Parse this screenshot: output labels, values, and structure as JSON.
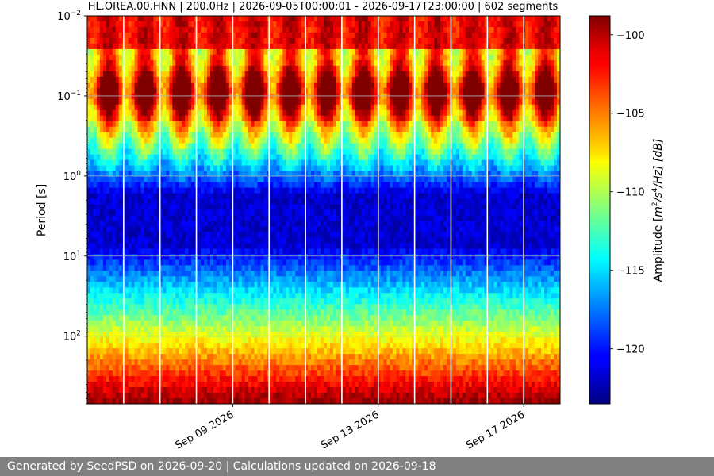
{
  "chart_data": {
    "type": "heatmap",
    "title": "HL.OREA.00.HNN | 200.0Hz | 2026-09-05T00:00:01 - 2026-09-17T23:00:00 | 602 segments",
    "ylabel": "Period [s]",
    "y_scale": "log",
    "y_inverted": true,
    "ylim": [
      0.01,
      700
    ],
    "yticks": [
      {
        "value": 0.01,
        "base": "10",
        "exp": "−2"
      },
      {
        "value": 0.1,
        "base": "10",
        "exp": "−1"
      },
      {
        "value": 1,
        "base": "10",
        "exp": "0"
      },
      {
        "value": 10,
        "base": "10",
        "exp": "1"
      },
      {
        "value": 100,
        "base": "10",
        "exp": "2"
      }
    ],
    "xlim": [
      "2026-09-05",
      "2026-09-18"
    ],
    "xticks": [
      {
        "date": "2026-09-09",
        "label": "Sep 09 2026"
      },
      {
        "date": "2026-09-13",
        "label": "Sep 13 2026"
      },
      {
        "date": "2026-09-17",
        "label": "Sep 17 2026"
      }
    ],
    "colorbar": {
      "label_prefix": "Amplitude [",
      "label_unit_base1": "m",
      "label_unit_exp1": "2",
      "label_unit_mid": "/s",
      "label_unit_exp2": "4",
      "label_unit_tail": "/Hz] [dB]",
      "min": -123.5,
      "max": -98.8,
      "ticks": [
        -100,
        -105,
        -110,
        -115,
        -120
      ],
      "tick_labels": [
        "−100",
        "−105",
        "−110",
        "−115",
        "−120"
      ],
      "colormap": "jet"
    },
    "gridlines_days": [
      "2026-09-06",
      "2026-09-07",
      "2026-09-08",
      "2026-09-09",
      "2026-09-10",
      "2026-09-11",
      "2026-09-12",
      "2026-09-13",
      "2026-09-14",
      "2026-09-15",
      "2026-09-16",
      "2026-09-17"
    ],
    "grid": true
  },
  "footer": {
    "text": "Generated by SeedPSD on 2026-09-20 | Calculations updated on 2026-09-18"
  }
}
